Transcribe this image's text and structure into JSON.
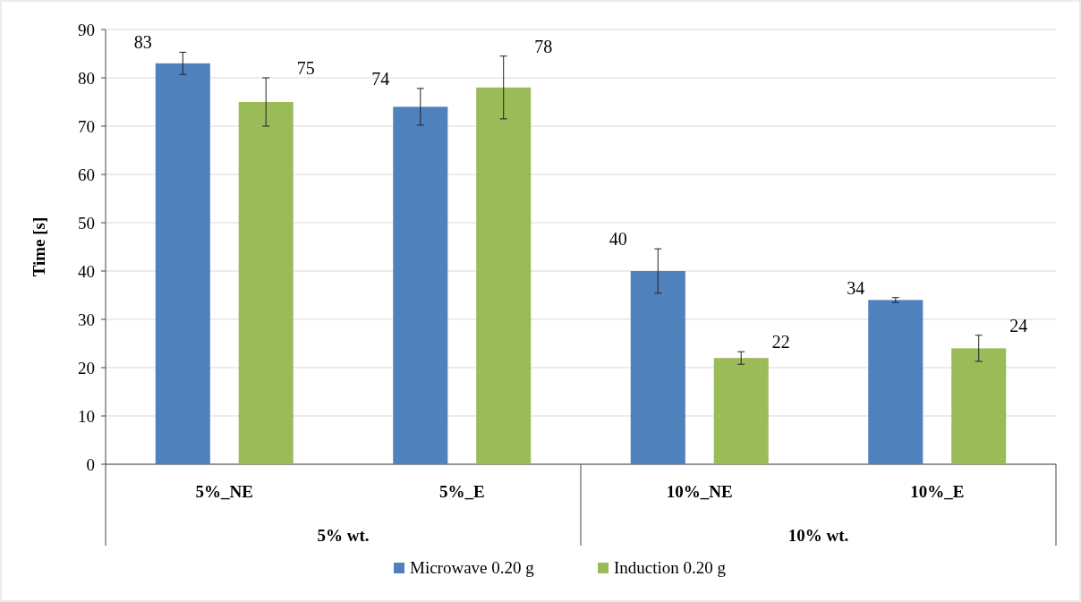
{
  "chart_data": {
    "type": "bar",
    "ylabel": "Time [s]",
    "categories": [
      "5%_NE",
      "5%_E",
      "10%_NE",
      "10%_E"
    ],
    "series": [
      {
        "name": "Microwave 0.20 g",
        "color": "#4f81bd",
        "values": [
          83,
          74,
          40,
          34
        ],
        "errors": [
          2.3,
          3.8,
          4.6,
          0.5
        ]
      },
      {
        "name": "Induction 0.20 g",
        "color": "#9bbb59",
        "values": [
          75,
          78,
          22,
          24
        ],
        "errors": [
          5,
          6.5,
          1.3,
          2.7
        ]
      }
    ],
    "ylim": [
      0,
      90
    ],
    "yticks": [
      0,
      10,
      20,
      30,
      40,
      50,
      60,
      70,
      80,
      90
    ],
    "grid": "y",
    "legend": "bottom",
    "data_labels": true,
    "annotations": [
      "5% wt.",
      "10% wt."
    ]
  }
}
